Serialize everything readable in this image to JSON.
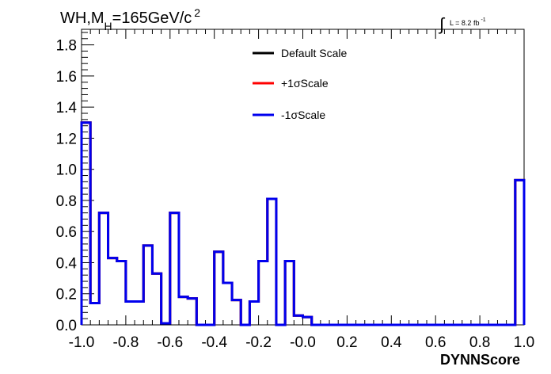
{
  "chart_data": {
    "type": "line",
    "title_main": "WH,M",
    "title_sub": "H",
    "title_rest": "=165GeV/c",
    "title_sup": "2",
    "lumi_label": "L = 8.2 fb",
    "lumi_sup": "-1",
    "xlabel": "DYNNScore",
    "ylabel": "",
    "xlim": [
      -1.0,
      1.0
    ],
    "ylim": [
      0.0,
      1.9
    ],
    "x_ticks": [
      -1.0,
      -0.8,
      -0.6,
      -0.4,
      -0.2,
      0.0,
      0.2,
      0.4,
      0.6,
      0.8,
      1.0
    ],
    "x_tick_labels": [
      "-1.0",
      "-0.8",
      "-0.6",
      "-0.4",
      "-0.2",
      "-0.0",
      "0.2",
      "0.4",
      "0.6",
      "0.8",
      "1.0"
    ],
    "y_ticks": [
      0.0,
      0.2,
      0.4,
      0.6,
      0.8,
      1.0,
      1.2,
      1.4,
      1.6,
      1.8
    ],
    "y_tick_labels": [
      "0.0",
      "0.2",
      "0.4",
      "0.6",
      "0.8",
      "1.0",
      "1.2",
      "1.4",
      "1.6",
      "1.8"
    ],
    "bin_edges": [
      -1.0,
      -0.96,
      -0.92,
      -0.88,
      -0.84,
      -0.8,
      -0.76,
      -0.72,
      -0.68,
      -0.64,
      -0.6,
      -0.56,
      -0.52,
      -0.48,
      -0.44,
      -0.4,
      -0.36,
      -0.32,
      -0.28,
      -0.24,
      -0.2,
      -0.16,
      -0.12,
      -0.08,
      -0.04,
      0.0,
      0.04,
      0.08,
      0.12,
      0.16,
      0.2,
      0.24,
      0.28,
      0.32,
      0.36,
      0.4,
      0.44,
      0.48,
      0.52,
      0.56,
      0.6,
      0.64,
      0.68,
      0.72,
      0.76,
      0.8,
      0.84,
      0.88,
      0.92,
      0.96,
      1.0
    ],
    "series": [
      {
        "name": "Default Scale",
        "color": "#000000",
        "values": [
          1.3,
          0.14,
          0.72,
          0.43,
          0.41,
          0.15,
          0.15,
          0.51,
          0.33,
          0.01,
          0.72,
          0.18,
          0.17,
          0.0,
          0.0,
          0.47,
          0.27,
          0.16,
          0.0,
          0.15,
          0.41,
          0.81,
          0.0,
          0.41,
          0.06,
          0.05,
          0.0,
          0.0,
          0.0,
          0.0,
          0.0,
          0.0,
          0.0,
          0.0,
          0.0,
          0.0,
          0.0,
          0.0,
          0.0,
          0.0,
          0.0,
          0.0,
          0.0,
          0.0,
          0.0,
          0.0,
          0.0,
          0.0,
          0.0,
          0.93
        ]
      },
      {
        "name": "+1σScale",
        "color": "#ff0000",
        "values": [
          1.3,
          0.14,
          0.72,
          0.43,
          0.41,
          0.15,
          0.15,
          0.51,
          0.33,
          0.01,
          0.72,
          0.18,
          0.17,
          0.0,
          0.0,
          0.47,
          0.27,
          0.16,
          0.0,
          0.15,
          0.41,
          0.81,
          0.0,
          0.41,
          0.06,
          0.05,
          0.0,
          0.0,
          0.0,
          0.0,
          0.0,
          0.0,
          0.0,
          0.0,
          0.0,
          0.0,
          0.0,
          0.0,
          0.0,
          0.0,
          0.0,
          0.0,
          0.0,
          0.0,
          0.0,
          0.0,
          0.0,
          0.0,
          0.0,
          0.93
        ]
      },
      {
        "name": "-1σScale",
        "color": "#0000ee",
        "values": [
          1.3,
          0.14,
          0.72,
          0.43,
          0.41,
          0.15,
          0.15,
          0.51,
          0.33,
          0.01,
          0.72,
          0.18,
          0.17,
          0.0,
          0.0,
          0.47,
          0.27,
          0.16,
          0.0,
          0.15,
          0.41,
          0.81,
          0.0,
          0.41,
          0.06,
          0.05,
          0.0,
          0.0,
          0.0,
          0.0,
          0.0,
          0.0,
          0.0,
          0.0,
          0.0,
          0.0,
          0.0,
          0.0,
          0.0,
          0.0,
          0.0,
          0.0,
          0.0,
          0.0,
          0.0,
          0.0,
          0.0,
          0.0,
          0.0,
          0.93
        ]
      }
    ],
    "legend_position": "top-center",
    "grid": false
  }
}
